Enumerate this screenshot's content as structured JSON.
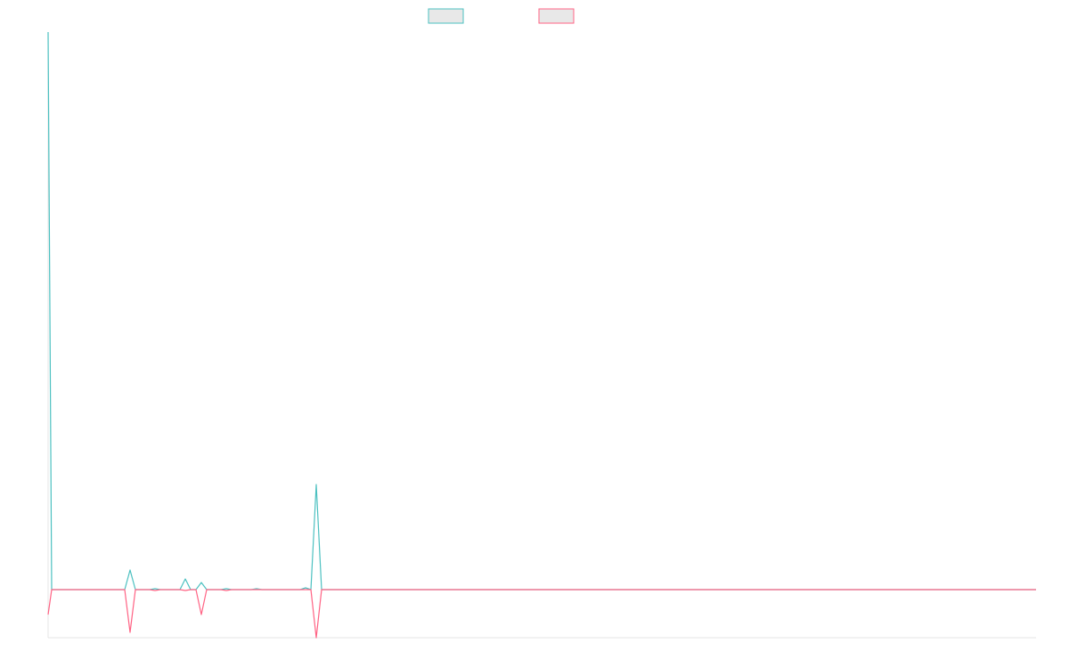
{
  "chart_data": {
    "type": "line",
    "x": [
      0,
      4,
      86,
      92,
      98,
      114,
      120,
      126,
      148,
      154,
      160,
      166,
      172,
      178,
      194,
      200,
      206,
      228,
      234,
      240,
      283,
      289,
      295,
      301,
      307,
      1109
    ],
    "xlim": [
      0,
      1109
    ],
    "ylim": [
      -54,
      626
    ],
    "series": [
      {
        "color": "#4bc0c0",
        "values": [
          626,
          0,
          0,
          22,
          0,
          0,
          1,
          0,
          0,
          12,
          0,
          0,
          8,
          0,
          0,
          1,
          0,
          0,
          1,
          0,
          0,
          2,
          0,
          118,
          0,
          0
        ]
      },
      {
        "color": "#ff6384",
        "values": [
          -28,
          0,
          0,
          -48,
          0,
          0,
          -1,
          0,
          0,
          -1,
          0,
          0,
          -28,
          0,
          0,
          -1,
          0,
          0,
          0,
          0,
          0,
          0,
          0,
          -54,
          0,
          0
        ]
      }
    ]
  }
}
